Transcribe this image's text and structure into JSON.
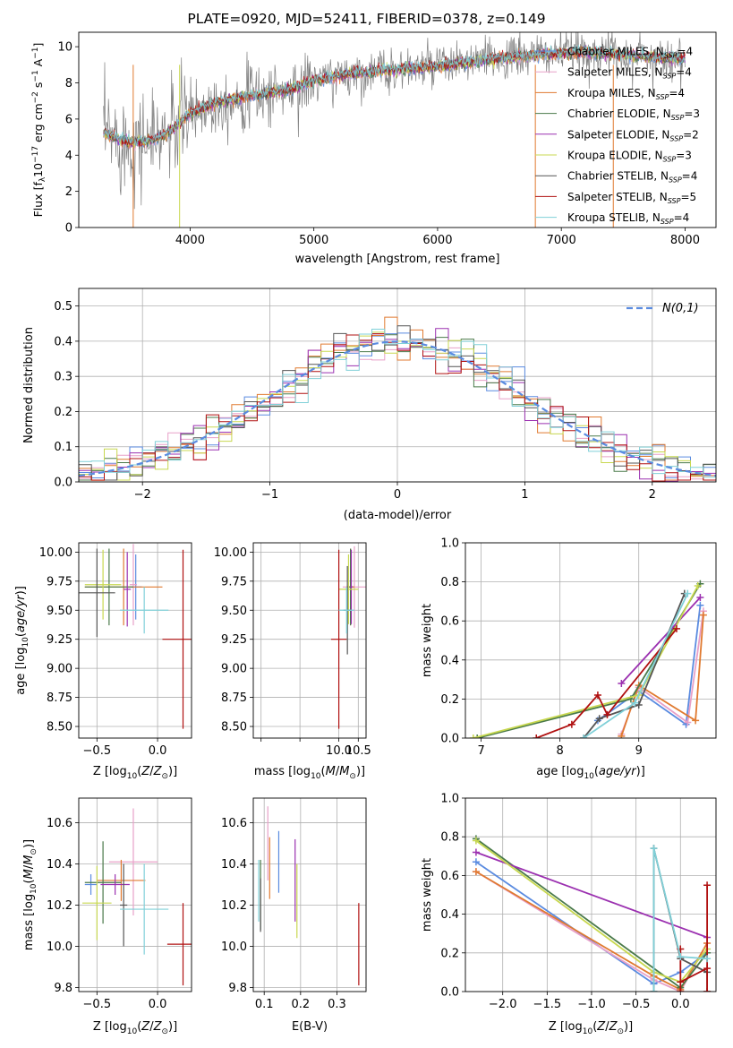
{
  "figure": {
    "title": "PLATE=0920, MJD=52411, FIBERID=0378, z=0.149"
  },
  "chart_data": [
    {
      "id": "spectrum",
      "type": "line",
      "xlabel": "wavelength [Angstrom, rest frame]",
      "ylabel": "Flux [f_λ 10^-17 erg cm^-2 s^-1 A^-1]",
      "xlim": [
        3100,
        8250
      ],
      "ylim": [
        0,
        10.8
      ],
      "xticks": [
        4000,
        5000,
        6000,
        7000,
        8000
      ],
      "yticks": [
        0,
        2,
        4,
        6,
        8,
        10
      ],
      "grid": false,
      "legend_position": "top-right",
      "data_color": "#808080",
      "model_shape_x": [
        3300,
        3500,
        3700,
        3850,
        4000,
        4200,
        4500,
        4800,
        5000,
        5300,
        5600,
        6000,
        6300,
        6600,
        6900,
        7200,
        7600,
        8000
      ],
      "model_shape_y": [
        5.2,
        4.7,
        4.8,
        5.4,
        6.3,
        6.9,
        7.3,
        7.6,
        8.1,
        8.5,
        8.7,
        8.9,
        9.2,
        9.4,
        9.6,
        9.7,
        9.5,
        9.3
      ],
      "legend": [
        {
          "label": "Chabrier MILES, N_SSP=4",
          "color": "#5a8be0"
        },
        {
          "label": "Salpeter MILES, N_SSP=4",
          "color": "#e8a0c8"
        },
        {
          "label": "Kroupa MILES, N_SSP=4",
          "color": "#e07a30"
        },
        {
          "label": "Chabrier ELODIE, N_SSP=3",
          "color": "#4a7a4a"
        },
        {
          "label": "Salpeter ELODIE, N_SSP=2",
          "color": "#9b30b0"
        },
        {
          "label": "Kroupa ELODIE, N_SSP=3",
          "color": "#c8d850"
        },
        {
          "label": "Chabrier STELIB, N_SSP=4",
          "color": "#555555"
        },
        {
          "label": "Salpeter STELIB, N_SSP=5",
          "color": "#b01010"
        },
        {
          "label": "Kroupa STELIB, N_SSP=4",
          "color": "#80d0d8"
        }
      ]
    },
    {
      "id": "residuals",
      "type": "line",
      "xlabel": "(data-model)/error",
      "ylabel": "Normed distribution",
      "xlim": [
        -2.5,
        2.5
      ],
      "ylim": [
        0,
        0.55
      ],
      "xticks": [
        -2,
        -1,
        0,
        1,
        2
      ],
      "yticks": [
        0.0,
        0.1,
        0.2,
        0.3,
        0.4,
        0.5
      ],
      "grid": true,
      "legend_position": "top-right",
      "legend_label": "N(0,1)",
      "gaussian_color": "#5a8be0"
    },
    {
      "id": "age_vs_Z",
      "type": "scatter",
      "xlabel": "Z [log10(Z/Z⊙)]",
      "ylabel": "age [log10(age/yr)]",
      "xlim": [
        -0.65,
        0.28
      ],
      "ylim": [
        8.4,
        10.08
      ],
      "xticks": [
        -0.5,
        0.0
      ],
      "yticks": [
        8.5,
        8.75,
        9.0,
        9.25,
        9.5,
        9.75,
        10.0
      ],
      "grid": true,
      "points": [
        {
          "color": "#5a8be0",
          "x": -0.18,
          "y": 9.7,
          "xerr": 0.05,
          "yerr": 0.28
        },
        {
          "color": "#e8a0c8",
          "x": -0.2,
          "y": 9.72,
          "xerr": 0.03,
          "yerr": 0.35
        },
        {
          "color": "#e07a30",
          "x": -0.28,
          "y": 9.7,
          "xerr": 0.32,
          "yerr": 0.33
        },
        {
          "color": "#4a7a4a",
          "x": -0.4,
          "y": 9.7,
          "xerr": 0.2,
          "yerr": 0.33
        },
        {
          "color": "#9b30b0",
          "x": -0.25,
          "y": 9.68,
          "xerr": 0.03,
          "yerr": 0.32
        },
        {
          "color": "#c8d850",
          "x": -0.45,
          "y": 9.72,
          "xerr": 0.15,
          "yerr": 0.3
        },
        {
          "color": "#555555",
          "x": -0.5,
          "y": 9.65,
          "xerr": 0.15,
          "yerr": 0.38
        },
        {
          "color": "#b01010",
          "x": 0.21,
          "y": 9.25,
          "xerr": 0.17,
          "yerr": 0.77
        },
        {
          "color": "#80d0d8",
          "x": -0.11,
          "y": 9.5,
          "xerr": 0.2,
          "yerr": 0.2
        }
      ]
    },
    {
      "id": "age_vs_mass",
      "type": "scatter",
      "xlabel": "mass [log10(M/M⊙)]",
      "ylabel": "",
      "xlim": [
        7.8,
        10.7
      ],
      "ylim": [
        8.4,
        10.08
      ],
      "xticks": [
        8.0,
        9.0,
        10.0,
        10.5
      ],
      "yticks": [
        8.5,
        8.75,
        9.0,
        9.25,
        9.5,
        9.75,
        10.0
      ],
      "xtick_labels": [
        "",
        "",
        "10.0",
        "10.5"
      ],
      "grid": true,
      "points": [
        {
          "color": "#5a8be0",
          "x": 10.3,
          "y": 9.7,
          "xerr": 0.08,
          "yerr": 0.28
        },
        {
          "color": "#e8a0c8",
          "x": 10.4,
          "y": 9.7,
          "xerr": 0.3,
          "yerr": 0.35
        },
        {
          "color": "#e07a30",
          "x": 10.3,
          "y": 9.7,
          "xerr": 0.1,
          "yerr": 0.33
        },
        {
          "color": "#4a7a4a",
          "x": 10.3,
          "y": 9.7,
          "xerr": 0.05,
          "yerr": 0.33
        },
        {
          "color": "#9b30b0",
          "x": 10.32,
          "y": 9.7,
          "xerr": 0.03,
          "yerr": 0.32
        },
        {
          "color": "#c8d850",
          "x": 10.25,
          "y": 9.68,
          "xerr": 0.25,
          "yerr": 0.3
        },
        {
          "color": "#555555",
          "x": 10.22,
          "y": 9.5,
          "xerr": 0.1,
          "yerr": 0.38
        },
        {
          "color": "#b01010",
          "x": 10.0,
          "y": 9.25,
          "xerr": 0.2,
          "yerr": 0.77
        },
        {
          "color": "#80d0d8",
          "x": 10.2,
          "y": 9.5,
          "xerr": 0.2,
          "yerr": 0.2
        }
      ]
    },
    {
      "id": "weight_vs_age",
      "type": "line",
      "xlabel": "age [log10(age/yr)]",
      "ylabel": "mass weight",
      "xlim": [
        6.8,
        9.98
      ],
      "ylim": [
        0,
        1.0
      ],
      "xticks": [
        7,
        8,
        9
      ],
      "yticks": [
        0.0,
        0.2,
        0.4,
        0.6,
        0.8,
        1.0
      ],
      "grid": true,
      "series": [
        {
          "color": "#5a8be0",
          "x": [
            8.48,
            9.0,
            9.6,
            9.78
          ],
          "y": [
            0.09,
            0.24,
            0.07,
            0.68
          ]
        },
        {
          "color": "#e8a0c8",
          "x": [
            8.78,
            9.0,
            9.62,
            9.82
          ],
          "y": [
            0.02,
            0.26,
            0.08,
            0.65
          ]
        },
        {
          "color": "#e07a30",
          "x": [
            8.78,
            9.0,
            9.72,
            9.82
          ],
          "y": [
            0.01,
            0.27,
            0.09,
            0.63
          ]
        },
        {
          "color": "#4a7a4a",
          "x": [
            6.95,
            8.9,
            9.78
          ],
          "y": [
            0.0,
            0.2,
            0.79
          ]
        },
        {
          "color": "#9b30b0",
          "x": [
            8.78,
            9.78
          ],
          "y": [
            0.28,
            0.72
          ]
        },
        {
          "color": "#c8d850",
          "x": [
            6.9,
            9.0,
            9.75
          ],
          "y": [
            0.0,
            0.22,
            0.78
          ]
        },
        {
          "color": "#555555",
          "x": [
            8.3,
            8.5,
            9.0,
            9.58
          ],
          "y": [
            0.0,
            0.1,
            0.17,
            0.74
          ]
        },
        {
          "color": "#b01010",
          "x": [
            7.7,
            8.15,
            8.48,
            8.6,
            9.48
          ],
          "y": [
            0.0,
            0.07,
            0.22,
            0.12,
            0.56
          ]
        },
        {
          "color": "#80d0d8",
          "x": [
            8.3,
            8.95,
            9.62
          ],
          "y": [
            0.0,
            0.18,
            0.74
          ]
        }
      ]
    },
    {
      "id": "mass_vs_Z",
      "type": "scatter",
      "xlabel": "Z [log10(Z/Z⊙)]",
      "ylabel": "mass [log10(M/M⊙)]",
      "xlim": [
        -0.65,
        0.28
      ],
      "ylim": [
        9.78,
        10.72
      ],
      "xticks": [
        -0.5,
        0.0
      ],
      "yticks": [
        9.8,
        10.0,
        10.2,
        10.4,
        10.6
      ],
      "grid": true,
      "points": [
        {
          "color": "#5a8be0",
          "x": -0.55,
          "y": 10.3,
          "xerr": 0.05,
          "yerr": 0.05
        },
        {
          "color": "#e8a0c8",
          "x": -0.2,
          "y": 10.41,
          "xerr": 0.2,
          "yerr": 0.26
        },
        {
          "color": "#e07a30",
          "x": -0.3,
          "y": 10.32,
          "xerr": 0.2,
          "yerr": 0.1
        },
        {
          "color": "#4a7a4a",
          "x": -0.45,
          "y": 10.31,
          "xerr": 0.15,
          "yerr": 0.2
        },
        {
          "color": "#9b30b0",
          "x": -0.35,
          "y": 10.3,
          "xerr": 0.12,
          "yerr": 0.05
        },
        {
          "color": "#c8d850",
          "x": -0.5,
          "y": 10.21,
          "xerr": 0.12,
          "yerr": 0.18
        },
        {
          "color": "#555555",
          "x": -0.28,
          "y": 10.2,
          "xerr": 0.03,
          "yerr": 0.2
        },
        {
          "color": "#b01010",
          "x": 0.21,
          "y": 10.01,
          "xerr": 0.13,
          "yerr": 0.2
        },
        {
          "color": "#80d0d8",
          "x": -0.11,
          "y": 10.18,
          "xerr": 0.2,
          "yerr": 0.22
        }
      ]
    },
    {
      "id": "mass_vs_ebv",
      "type": "scatter",
      "xlabel": "E(B-V)",
      "ylabel": "",
      "xlim": [
        0.07,
        0.38
      ],
      "ylim": [
        9.78,
        10.72
      ],
      "xticks": [
        0.1,
        0.2,
        0.3
      ],
      "yticks": [
        9.8,
        10.0,
        10.2,
        10.4,
        10.6
      ],
      "grid": true,
      "points": [
        {
          "color": "#5a8be0",
          "x": 0.14,
          "y": 10.41,
          "xerr": 0,
          "yerr": 0.15
        },
        {
          "color": "#e8a0c8",
          "x": 0.11,
          "y": 10.5,
          "xerr": 0,
          "yerr": 0.18
        },
        {
          "color": "#e07a30",
          "x": 0.115,
          "y": 10.38,
          "xerr": 0,
          "yerr": 0.15
        },
        {
          "color": "#4a7a4a",
          "x": 0.09,
          "y": 10.25,
          "xerr": 0,
          "yerr": 0.17
        },
        {
          "color": "#9b30b0",
          "x": 0.185,
          "y": 10.32,
          "xerr": 0,
          "yerr": 0.2
        },
        {
          "color": "#c8d850",
          "x": 0.19,
          "y": 10.22,
          "xerr": 0,
          "yerr": 0.18
        },
        {
          "color": "#555555",
          "x": 0.09,
          "y": 10.2,
          "xerr": 0,
          "yerr": 0.13
        },
        {
          "color": "#b01010",
          "x": 0.36,
          "y": 10.01,
          "xerr": 0,
          "yerr": 0.2
        },
        {
          "color": "#80d0d8",
          "x": 0.085,
          "y": 10.27,
          "xerr": 0,
          "yerr": 0.15
        }
      ]
    },
    {
      "id": "weight_vs_Z",
      "type": "line",
      "xlabel": "Z [log10(Z/Z⊙)]",
      "ylabel": "mass weight",
      "xlim": [
        -2.42,
        0.4
      ],
      "ylim": [
        0,
        1.0
      ],
      "xticks": [
        -2.0,
        -1.5,
        -1.0,
        -0.5,
        0.0
      ],
      "yticks": [
        0.0,
        0.2,
        0.4,
        0.6,
        0.8,
        1.0
      ],
      "grid": true,
      "series": [
        {
          "color": "#5a8be0",
          "x": [
            -2.3,
            -0.3,
            0.0,
            0.3
          ],
          "y": [
            0.67,
            0.04,
            0.1,
            0.2
          ]
        },
        {
          "color": "#e8a0c8",
          "x": [
            -2.3,
            -0.3,
            0.0,
            0.3
          ],
          "y": [
            0.62,
            0.06,
            0.0,
            0.25
          ]
        },
        {
          "color": "#e07a30",
          "x": [
            -2.3,
            -0.3,
            0.0,
            0.3
          ],
          "y": [
            0.62,
            0.08,
            0.01,
            0.25
          ]
        },
        {
          "color": "#4a7a4a",
          "x": [
            -2.3,
            0.0,
            0.3
          ],
          "y": [
            0.79,
            0.02,
            0.2
          ]
        },
        {
          "color": "#9b30b0",
          "x": [
            -2.3,
            0.3
          ],
          "y": [
            0.72,
            0.28
          ]
        },
        {
          "color": "#c8d850",
          "x": [
            -2.3,
            -0.3,
            0.0,
            0.3
          ],
          "y": [
            0.78,
            0.1,
            0.05,
            0.22
          ]
        },
        {
          "color": "#555555",
          "x": [
            -0.3,
            -0.3,
            0.0,
            0.3,
            0.3
          ],
          "y": [
            0.0,
            0.74,
            0.17,
            0.1,
            0.0
          ]
        },
        {
          "color": "#b01010",
          "x": [
            0.0,
            0.0,
            0.0,
            0.3,
            0.3,
            0.3
          ],
          "y": [
            0.0,
            0.22,
            0.05,
            0.12,
            0.55,
            0.0
          ]
        },
        {
          "color": "#80d0d8",
          "x": [
            -0.3,
            -0.3,
            0.0,
            0.3
          ],
          "y": [
            0.0,
            0.74,
            0.18,
            0.17
          ]
        }
      ]
    }
  ]
}
